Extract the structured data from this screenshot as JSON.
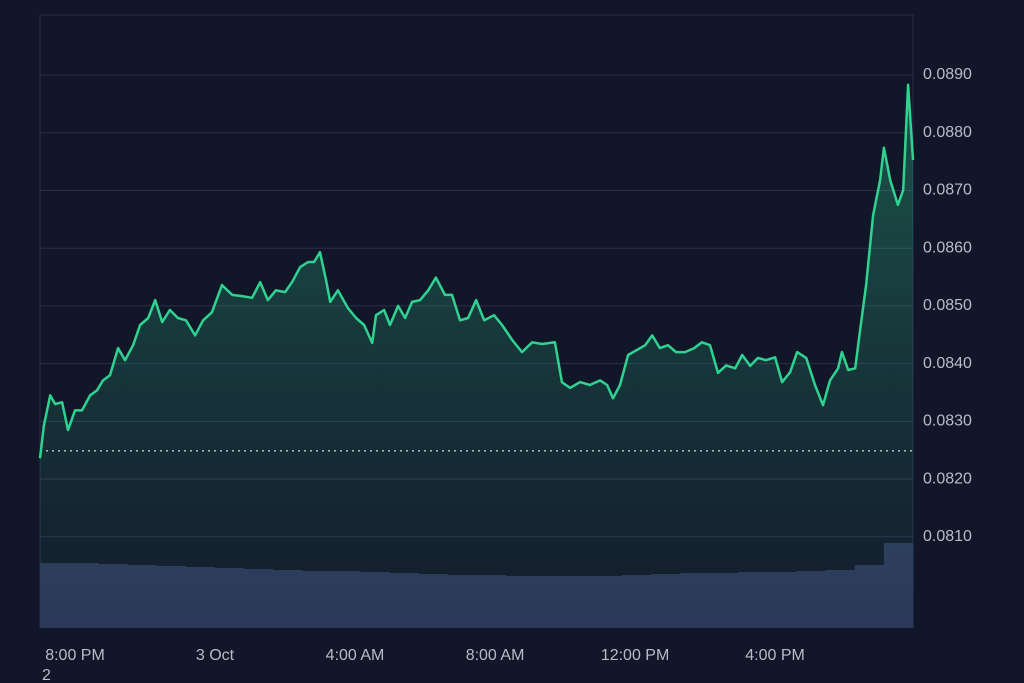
{
  "chart_data": {
    "type": "area",
    "x": [
      0,
      0.11,
      0.29,
      0.43,
      0.63,
      0.8,
      1,
      1.2,
      1.43,
      1.63,
      1.8,
      2,
      2.23,
      2.43,
      2.66,
      2.86,
      3.09,
      3.29,
      3.49,
      3.71,
      3.94,
      4.17,
      4.43,
      4.66,
      4.91,
      5.2,
      5.49,
      5.77,
      6.06,
      6.29,
      6.51,
      6.74,
      7,
      7.2,
      7.43,
      7.66,
      7.83,
      8,
      8.17,
      8.29,
      8.51,
      8.8,
      9.03,
      9.26,
      9.49,
      9.6,
      9.83,
      10,
      10.23,
      10.43,
      10.63,
      10.86,
      11.09,
      11.31,
      11.57,
      11.77,
      12,
      12.23,
      12.46,
      12.69,
      12.97,
      13.2,
      13.49,
      13.77,
      14.06,
      14.34,
      14.71,
      14.91,
      15.14,
      15.43,
      15.71,
      16,
      16.2,
      16.37,
      16.57,
      16.8,
      17.03,
      17.29,
      17.49,
      17.71,
      17.94,
      18.17,
      18.43,
      18.69,
      18.91,
      19.14,
      19.37,
      19.6,
      19.86,
      20.06,
      20.29,
      20.51,
      20.74,
      21,
      21.2,
      21.43,
      21.63,
      21.89,
      22.14,
      22.37,
      22.57,
      22.8,
      22.91,
      23.09,
      23.29,
      23.43,
      23.6,
      23.8,
      24,
      24.11,
      24.29,
      24.51,
      24.66,
      24.8,
      24.94
    ],
    "series": [
      {
        "color": "#2fd38f",
        "values": [
          0.08236,
          0.08293,
          0.08345,
          0.0833,
          0.08333,
          0.08285,
          0.08319,
          0.08319,
          0.08345,
          0.08354,
          0.08371,
          0.0838,
          0.08427,
          0.08406,
          0.08432,
          0.08467,
          0.08479,
          0.0851,
          0.08472,
          0.08493,
          0.08479,
          0.08475,
          0.08449,
          0.08475,
          0.08489,
          0.08536,
          0.08519,
          0.08517,
          0.08514,
          0.08541,
          0.0851,
          0.08527,
          0.08524,
          0.08541,
          0.08567,
          0.08576,
          0.08576,
          0.08593,
          0.08545,
          0.08507,
          0.08527,
          0.08496,
          0.08479,
          0.08467,
          0.08436,
          0.08484,
          0.08493,
          0.08467,
          0.085,
          0.08479,
          0.08507,
          0.0851,
          0.08527,
          0.08549,
          0.08519,
          0.08519,
          0.08475,
          0.08479,
          0.0851,
          0.08475,
          0.08484,
          0.08467,
          0.08441,
          0.0842,
          0.08437,
          0.08434,
          0.08437,
          0.08368,
          0.08358,
          0.08368,
          0.08363,
          0.08371,
          0.08363,
          0.0834,
          0.08363,
          0.08415,
          0.08423,
          0.08432,
          0.08449,
          0.08427,
          0.08432,
          0.0842,
          0.0842,
          0.08427,
          0.08437,
          0.08432,
          0.08384,
          0.08397,
          0.08392,
          0.08415,
          0.08396,
          0.0841,
          0.08406,
          0.08411,
          0.08368,
          0.08385,
          0.0842,
          0.0841,
          0.08363,
          0.08328,
          0.08371,
          0.08392,
          0.0842,
          0.08389,
          0.08392,
          0.08458,
          0.08536,
          0.08657,
          0.08718,
          0.08774,
          0.08718,
          0.08675,
          0.08701,
          0.08883,
          0.08753
        ]
      }
    ],
    "reference_line": 0.08249,
    "volume": {
      "color": "#2c3558",
      "values": [
        65,
        65,
        64,
        63,
        62,
        61,
        60,
        59,
        58,
        57,
        57,
        56,
        55,
        54,
        53,
        53,
        52,
        52,
        52,
        52,
        53,
        54,
        55,
        55,
        56,
        56,
        57,
        58,
        63,
        85
      ]
    },
    "xlim": [
      0,
      24.94
    ],
    "xticks": [
      {
        "value": 1,
        "label": "8:00 PM"
      },
      {
        "value": 5,
        "label": "3 Oct"
      },
      {
        "value": 9,
        "label": "4:00 AM"
      },
      {
        "value": 13,
        "label": "8:00 AM"
      },
      {
        "value": 17,
        "label": "12:00 PM"
      },
      {
        "value": 21,
        "label": "4:00 PM"
      }
    ],
    "ylim": [
      0.07942,
      0.09004
    ],
    "yticks": [
      {
        "value": 0.081,
        "label": "0.0810"
      },
      {
        "value": 0.082,
        "label": "0.0820"
      },
      {
        "value": 0.083,
        "label": "0.0830"
      },
      {
        "value": 0.084,
        "label": "0.0840"
      },
      {
        "value": 0.085,
        "label": "0.0850"
      },
      {
        "value": 0.086,
        "label": "0.0860"
      },
      {
        "value": 0.087,
        "label": "0.0870"
      },
      {
        "value": 0.088,
        "label": "0.0880"
      },
      {
        "value": 0.089,
        "label": "0.0890"
      }
    ],
    "grid": true,
    "footer_text": "2"
  }
}
